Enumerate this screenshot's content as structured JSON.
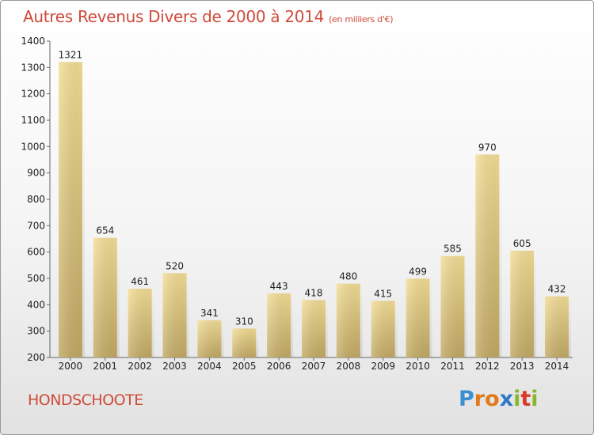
{
  "title": "Autres Revenus Divers de 2000 à 2014",
  "title_unit": "(en milliers d'€)",
  "city": "HONDSCHOOTE",
  "logo": {
    "letters": [
      "P",
      "r",
      "o",
      "x",
      "i",
      "t",
      "i"
    ],
    "colors": [
      "#3a8fd0",
      "#e07a1a",
      "#e07a1a",
      "#2e78c8",
      "#86b82e",
      "#d93a2a",
      "#86b82e"
    ]
  },
  "colors": {
    "title": "#d04a3a",
    "bar_light": "#f3dc94",
    "bar_dark": "#c4ab66"
  },
  "chart_data": {
    "type": "bar",
    "title": "Autres Revenus Divers de 2000 à 2014",
    "categories": [
      "2000",
      "2001",
      "2002",
      "2003",
      "2004",
      "2005",
      "2006",
      "2007",
      "2008",
      "2009",
      "2010",
      "2011",
      "2012",
      "2013",
      "2014"
    ],
    "values": [
      1321,
      654,
      461,
      520,
      341,
      310,
      443,
      418,
      480,
      415,
      499,
      585,
      970,
      605,
      432
    ],
    "ylim": [
      200,
      1400
    ],
    "yticks": [
      200,
      300,
      400,
      500,
      600,
      700,
      800,
      900,
      1000,
      1100,
      1200,
      1300,
      1400
    ],
    "xlabel": "",
    "ylabel": "",
    "grid": false,
    "legend": "none"
  }
}
